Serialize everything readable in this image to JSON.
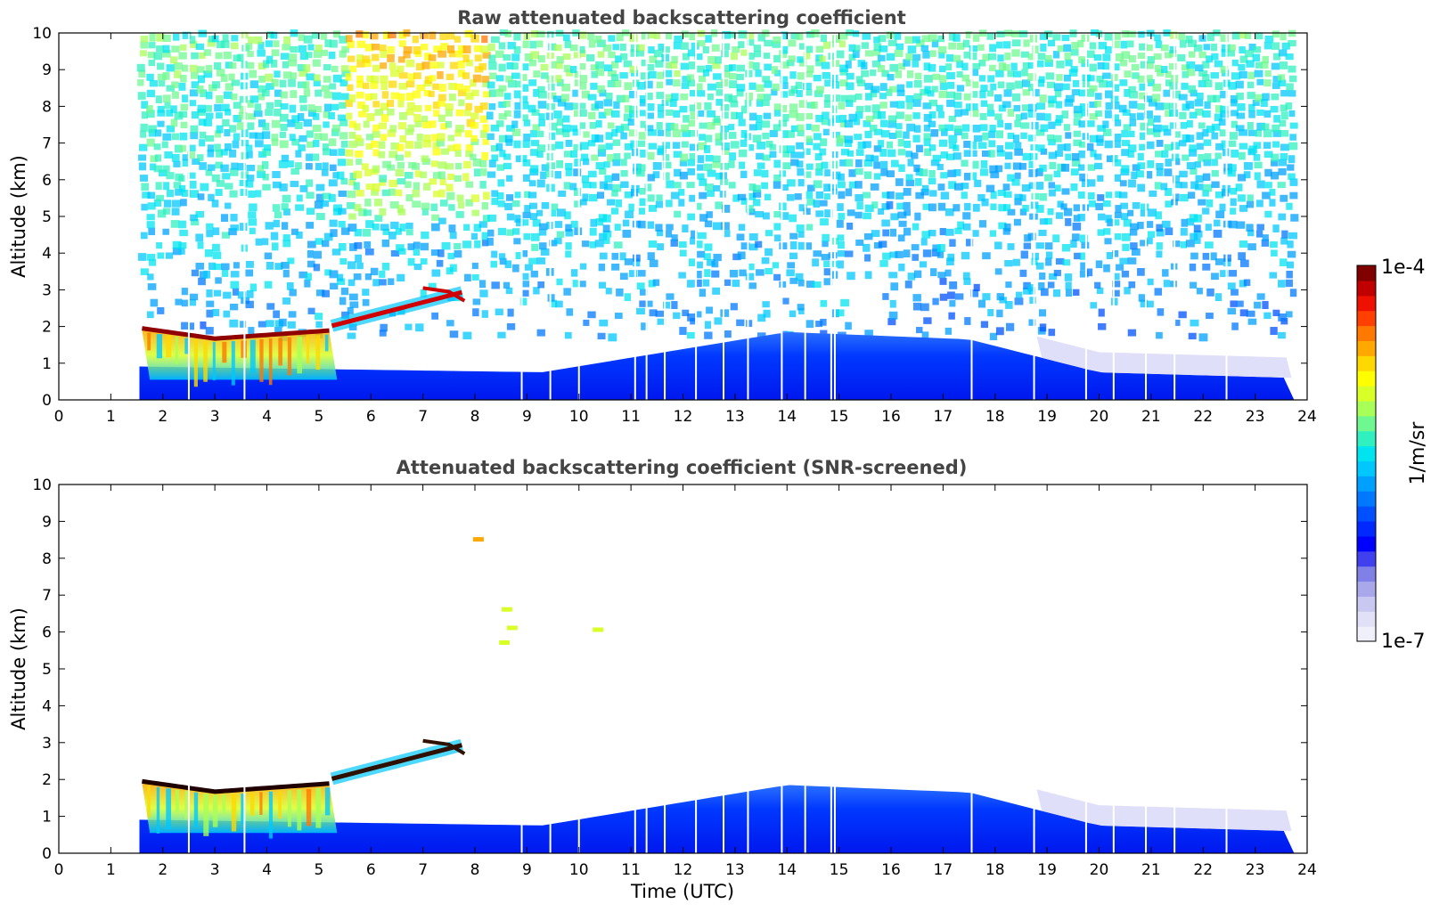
{
  "chart_data": [
    {
      "type": "heatmap",
      "title": "Raw attenuated backscattering coefficient",
      "xlabel": "",
      "ylabel": "Altitude (km)",
      "xlim": [
        0,
        24
      ],
      "ylim": [
        0,
        10
      ],
      "x_ticks": [
        "0",
        "1",
        "2",
        "3",
        "4",
        "5",
        "6",
        "7",
        "8",
        "9",
        "10",
        "11",
        "12",
        "13",
        "14",
        "15",
        "16",
        "17",
        "18",
        "19",
        "20",
        "21",
        "22",
        "23",
        "24"
      ],
      "y_ticks": [
        "0",
        "1",
        "2",
        "3",
        "4",
        "5",
        "6",
        "7",
        "8",
        "9",
        "10"
      ],
      "data_time_range_utc": [
        1.55,
        23.75
      ],
      "data_gap_times_utc": [
        2.5,
        3.57,
        8.9,
        9.45,
        10.0,
        11.08,
        11.3,
        11.65,
        12.25,
        12.78,
        13.25,
        13.9,
        14.35,
        14.85,
        14.92,
        17.55,
        18.75,
        19.75,
        20.28,
        20.9,
        21.45,
        22.45
      ],
      "features": [
        {
          "name": "cloud top layer",
          "time": [
            1.6,
            5.2
          ],
          "altitude_km": [
            1.65,
            2.0
          ],
          "level": "high"
        },
        {
          "name": "rising cloud band",
          "time": [
            5.2,
            7.8
          ],
          "altitude_km": [
            1.8,
            3.1
          ],
          "level": "high"
        },
        {
          "name": "boundary layer",
          "time": [
            9.5,
            23.7
          ],
          "altitude_km": [
            0,
            1.9
          ],
          "level": "low"
        }
      ]
    },
    {
      "type": "heatmap",
      "title": "Attenuated backscattering coefficient (SNR-screened)",
      "xlabel": "Time (UTC)",
      "ylabel": "Altitude (km)",
      "xlim": [
        0,
        24
      ],
      "ylim": [
        0,
        10
      ],
      "x_ticks": [
        "0",
        "1",
        "2",
        "3",
        "4",
        "5",
        "6",
        "7",
        "8",
        "9",
        "10",
        "11",
        "12",
        "13",
        "14",
        "15",
        "16",
        "17",
        "18",
        "19",
        "20",
        "21",
        "22",
        "23",
        "24"
      ],
      "y_ticks": [
        "0",
        "1",
        "2",
        "3",
        "4",
        "5",
        "6",
        "7",
        "8",
        "9",
        "10"
      ],
      "data_time_range_utc": [
        1.55,
        23.75
      ],
      "isolated_returns": [
        {
          "time": 8.05,
          "altitude_km": 8.5
        },
        {
          "time": 8.6,
          "altitude_km": 6.6
        },
        {
          "time": 8.7,
          "altitude_km": 6.1
        },
        {
          "time": 8.55,
          "altitude_km": 5.7
        },
        {
          "time": 10.35,
          "altitude_km": 6.05
        }
      ]
    }
  ],
  "colorbar": {
    "max_label": "1e-4",
    "min_label": "1e-7",
    "unit_label": "1/m/sr",
    "colors": [
      "#f0f0fa",
      "#e0e0f6",
      "#c8c8f0",
      "#a8a8ea",
      "#8080e6",
      "#4040ee",
      "#0000ff",
      "#0028ff",
      "#0050ff",
      "#0078ff",
      "#00a0ff",
      "#00c8ff",
      "#00e4f0",
      "#30f0c0",
      "#70f890",
      "#a8ff58",
      "#d8ff28",
      "#ffff00",
      "#ffd800",
      "#ffa800",
      "#ff7800",
      "#ff4000",
      "#ee1000",
      "#c00000",
      "#800000"
    ]
  }
}
